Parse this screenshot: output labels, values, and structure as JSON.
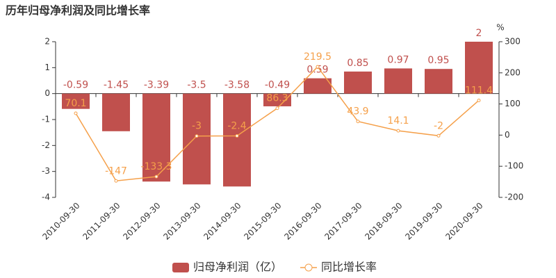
{
  "chart_data": {
    "type": "bar",
    "title": "历年归母净利润及同比增长率",
    "categories": [
      "2010-09-30",
      "2011-09-30",
      "2012-09-30",
      "2013-09-30",
      "2014-09-30",
      "2015-09-30",
      "2016-09-30",
      "2017-09-30",
      "2018-09-30",
      "2019-09-30",
      "2020-09-30"
    ],
    "series": [
      {
        "name": "归母净利润（亿）",
        "type": "bar",
        "color": "#c0504d",
        "values": [
          -0.59,
          -1.45,
          -3.39,
          -3.5,
          -3.58,
          -0.49,
          0.59,
          0.85,
          0.97,
          0.95,
          2
        ]
      },
      {
        "name": "同比增长率",
        "type": "line",
        "axis": "y2",
        "color": "#f5a04a",
        "values": [
          70.1,
          -147,
          -133.3,
          -3,
          -2.4,
          86.3,
          219.5,
          43.9,
          14.1,
          -2,
          111.4
        ]
      }
    ],
    "ylim": [
      -4,
      2
    ],
    "yticks": [
      -4,
      -3,
      -2,
      -1,
      0,
      1,
      2
    ],
    "y2lim": [
      -200,
      300
    ],
    "y2ticks": [
      -200,
      -100,
      0,
      100,
      200,
      300
    ],
    "y2_unit": "%"
  }
}
